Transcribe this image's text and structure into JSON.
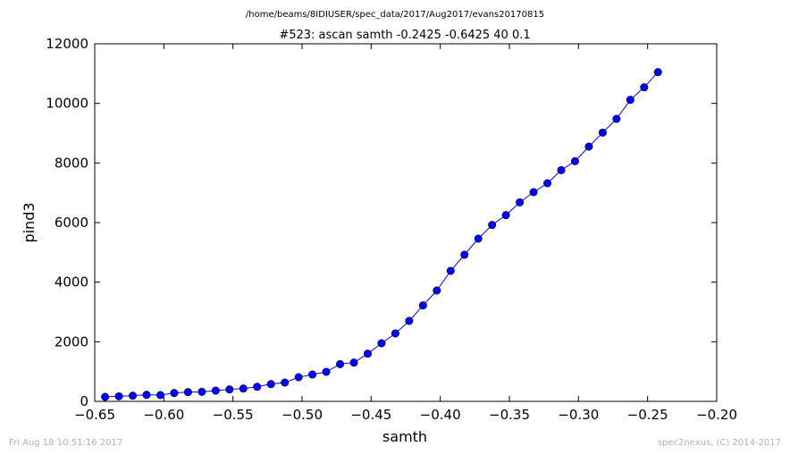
{
  "figure": {
    "supertitle": "/home/beams/8IDIUSER/spec_data/2017/Aug2017/evans20170815",
    "footer_left": "Fri Aug 18 10:51:16 2017",
    "footer_right": "spec2nexus, (C) 2014-2017"
  },
  "chart_data": {
    "type": "line",
    "title": "#523: ascan  samth -0.2425 -0.6425  40 0.1",
    "xlabel": "samth",
    "ylabel": "pind3",
    "xlim": [
      -0.65,
      -0.2
    ],
    "ylim": [
      0,
      12000
    ],
    "xticks": [
      -0.65,
      -0.6,
      -0.55,
      -0.5,
      -0.45,
      -0.4,
      -0.35,
      -0.3,
      -0.25,
      -0.2
    ],
    "xtick_labels": [
      "−0.65",
      "−0.60",
      "−0.55",
      "−0.50",
      "−0.45",
      "−0.40",
      "−0.35",
      "−0.30",
      "−0.25",
      "−0.20"
    ],
    "yticks": [
      0,
      2000,
      4000,
      6000,
      8000,
      10000,
      12000
    ],
    "ytick_labels": [
      "0",
      "2000",
      "4000",
      "6000",
      "8000",
      "10000",
      "12000"
    ],
    "grid": false,
    "line_color": "#0000ff",
    "marker": "circle",
    "series": [
      {
        "x": [
          -0.6425,
          -0.6325,
          -0.6225,
          -0.6125,
          -0.6025,
          -0.5925,
          -0.5825,
          -0.5725,
          -0.5625,
          -0.5525,
          -0.5425,
          -0.5325,
          -0.5225,
          -0.5125,
          -0.5025,
          -0.4925,
          -0.4825,
          -0.4725,
          -0.4625,
          -0.4525,
          -0.4425,
          -0.4325,
          -0.4225,
          -0.4125,
          -0.4025,
          -0.3925,
          -0.3825,
          -0.3725,
          -0.3625,
          -0.3525,
          -0.3425,
          -0.3325,
          -0.3225,
          -0.3125,
          -0.3025,
          -0.2925,
          -0.2825,
          -0.2725,
          -0.2625,
          -0.2525,
          -0.2425
        ],
        "y": [
          150,
          170,
          190,
          220,
          210,
          280,
          310,
          320,
          360,
          400,
          430,
          490,
          580,
          630,
          810,
          900,
          990,
          1250,
          1300,
          1600,
          1950,
          2280,
          2700,
          3220,
          3720,
          4380,
          4920,
          5460,
          5920,
          6250,
          6680,
          7020,
          7320,
          7760,
          8060,
          8550,
          9020,
          9480,
          10120,
          10540,
          11050
        ]
      }
    ]
  }
}
